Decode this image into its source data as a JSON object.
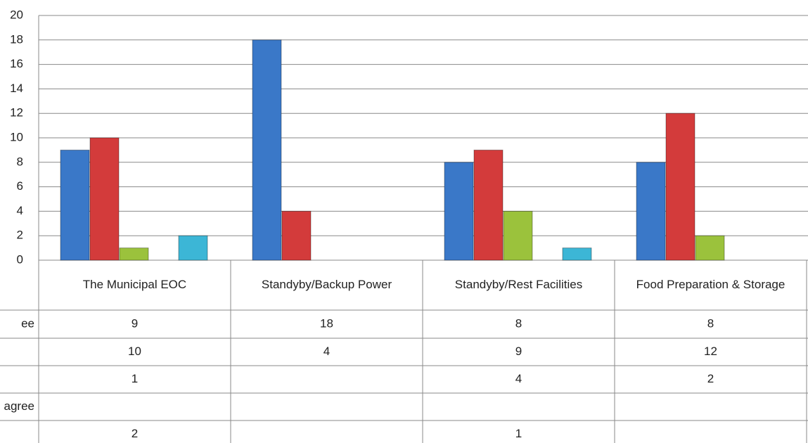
{
  "chart_data": {
    "type": "bar",
    "categories": [
      "The Municipal EOC",
      "Standyby/Backup Power",
      "Standyby/Rest Facilities",
      "Food Preparation & Storage"
    ],
    "series": [
      {
        "name": "ee",
        "color": "#3a78c8",
        "values": [
          9,
          18,
          8,
          8
        ]
      },
      {
        "color": "#d33b3b",
        "values": [
          10,
          4,
          9,
          12
        ]
      },
      {
        "color": "#9bc23c",
        "values": [
          1,
          null,
          4,
          2
        ]
      },
      {
        "name": "agree",
        "values": [
          null,
          null,
          null,
          null
        ]
      },
      {
        "color": "#3cb6d6",
        "values": [
          2,
          null,
          1,
          null
        ]
      }
    ],
    "ylim": [
      0,
      20
    ],
    "yticks": [
      0,
      2,
      4,
      6,
      8,
      10,
      12,
      14,
      16,
      18,
      20
    ],
    "grid": true
  }
}
